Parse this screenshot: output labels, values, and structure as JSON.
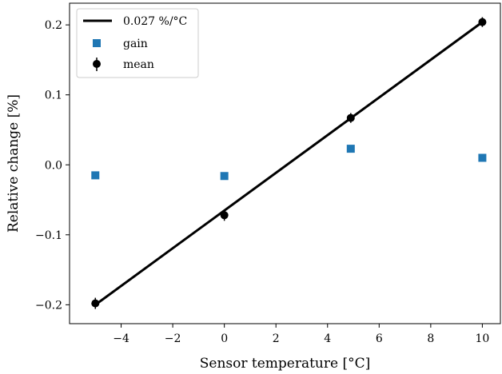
{
  "chart_data": {
    "type": "scatter",
    "xlabel": "Sensor temperature [°C]",
    "ylabel": "Relative change [%]",
    "xlim": [
      -6.0,
      10.7
    ],
    "ylim": [
      -0.227,
      0.231
    ],
    "x_ticks": [
      -4,
      -2,
      0,
      2,
      4,
      6,
      8,
      10
    ],
    "x_tick_labels": [
      "−4",
      "−2",
      "0",
      "2",
      "4",
      "6",
      "8",
      "10"
    ],
    "y_ticks": [
      -0.2,
      -0.1,
      0.0,
      0.1,
      0.2
    ],
    "y_tick_labels": [
      "−0.2",
      "−0.1",
      "0.0",
      "0.1",
      "0.2"
    ],
    "grid": false,
    "legend_position": "top-left",
    "series": [
      {
        "name": "0.027 %/°C",
        "kind": "line",
        "color": "#000000",
        "x": [
          -5.0,
          10.0
        ],
        "y": [
          -0.2,
          0.204
        ]
      },
      {
        "name": "gain",
        "kind": "square-markers",
        "color": "#1f77b4",
        "x": [
          -5.0,
          0.0,
          4.9,
          10.0
        ],
        "y": [
          -0.015,
          -0.016,
          0.023,
          0.01
        ]
      },
      {
        "name": "mean",
        "kind": "errorbar-markers",
        "color": "#000000",
        "x": [
          -5.0,
          0.0,
          4.9,
          10.0
        ],
        "y": [
          -0.198,
          -0.072,
          0.067,
          0.204
        ],
        "yerr": [
          0.008,
          0.008,
          0.007,
          0.007
        ]
      }
    ]
  }
}
